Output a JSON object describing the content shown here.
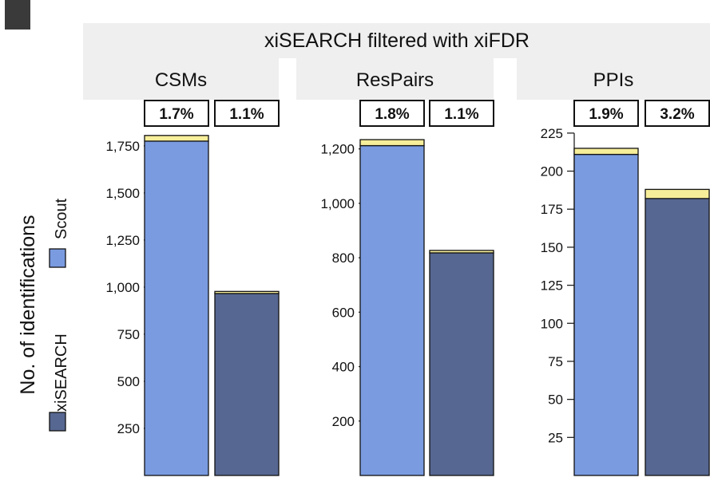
{
  "chart_data": {
    "type": "bar",
    "stacked": true,
    "title": "xiSEARCH filtered with xiFDR",
    "ylabel": "No. of identifications",
    "legend": {
      "position": "left",
      "entries": [
        {
          "name": "Scout",
          "color": "#7a9be0"
        },
        {
          "name": "xiSEARCH",
          "color": "#566791"
        }
      ]
    },
    "fdr_color": "#f7ee9a",
    "panels": [
      {
        "title": "CSMs",
        "ylim": [
          0,
          1800
        ],
        "yticks": [
          250,
          500,
          750,
          1000,
          1250,
          1500,
          1750
        ],
        "ytick_labels": [
          "250",
          "500",
          "750",
          "1,000",
          "1,250",
          "1,500",
          "1,750"
        ],
        "bars": [
          {
            "series": "Scout",
            "value": 1775,
            "false_hits": 30,
            "fdr_label": "1.7%"
          },
          {
            "series": "xiSEARCH",
            "value": 966,
            "false_hits": 11,
            "fdr_label": "1.1%"
          }
        ]
      },
      {
        "title": "ResPairs",
        "ylim": [
          0,
          1240
        ],
        "yticks": [
          200,
          400,
          600,
          800,
          1000,
          1200
        ],
        "ytick_labels": [
          "200",
          "400",
          "600",
          "800",
          "1,000",
          "1,200"
        ],
        "bars": [
          {
            "series": "Scout",
            "value": 1212,
            "false_hits": 22,
            "fdr_label": "1.8%"
          },
          {
            "series": "xiSEARCH",
            "value": 818,
            "false_hits": 9,
            "fdr_label": "1.1%"
          }
        ]
      },
      {
        "title": "PPIs",
        "ylim": [
          0,
          216
        ],
        "yticks": [
          25,
          50,
          75,
          100,
          125,
          150,
          175,
          200,
          225
        ],
        "ytick_labels": [
          "25",
          "50",
          "75",
          "100",
          "125",
          "150",
          "175",
          "200",
          "225"
        ],
        "bars": [
          {
            "series": "Scout",
            "value": 211,
            "false_hits": 4,
            "fdr_label": "1.9%"
          },
          {
            "series": "xiSEARCH",
            "value": 182,
            "false_hits": 6,
            "fdr_label": "3.2%"
          }
        ]
      }
    ]
  }
}
